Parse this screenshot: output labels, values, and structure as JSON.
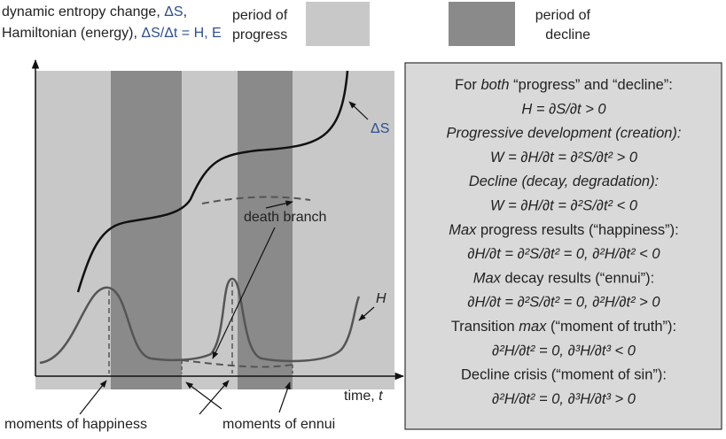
{
  "axis": {
    "y_label": [
      "dynamic entropy change, ",
      "ΔS",
      ",",
      "Hamiltonian (energy), ",
      "ΔS/Δt = H, E"
    ],
    "x_label": [
      "time, ",
      "t"
    ]
  },
  "legend": {
    "progress": [
      "period of",
      "progress"
    ],
    "decline": [
      "period of",
      "decline"
    ]
  },
  "curves": {
    "entropy": "ΔS",
    "hamiltonian": "H",
    "death_branch": "death branch"
  },
  "moments": {
    "happiness": "moments of happiness",
    "ennui": "moments of ennui"
  },
  "box": {
    "lines": [
      [
        "For ",
        "both",
        " “progress” and “decline”:"
      ],
      [
        "H = ∂S/∂t > 0"
      ],
      [
        "Progressive development (creation):"
      ],
      [
        "W = ∂H/∂t = ∂²S/∂t² > 0"
      ],
      [
        "Decline (decay, degradation):"
      ],
      [
        "W = ∂H/∂t = ∂²S/∂t² < 0"
      ],
      [
        "Max",
        " progress results (“happiness”):"
      ],
      [
        "∂H/∂t = ∂²S/∂t² = 0,  ∂²H/∂t² < 0"
      ],
      [
        "Max",
        " decay results (“ennui”):"
      ],
      [
        "∂H/∂t = ∂²S/∂t² = 0,  ∂²H/∂t² > 0"
      ],
      [
        "Transition ",
        "max",
        " (“moment of truth”):"
      ],
      [
        "∂²H/∂t² = 0,  ∂³H/∂t³ < 0"
      ],
      [
        "Decline crisis (“moment of sin”):"
      ],
      [
        "∂²H/∂t² = 0,  ∂³H/∂t³ > 0"
      ]
    ]
  }
}
